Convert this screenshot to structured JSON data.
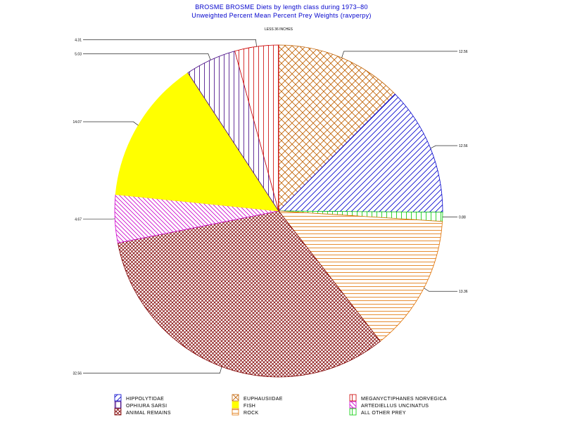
{
  "chart_data": {
    "type": "pie",
    "title": "BROSME BROSME Diets by length class during 1973–80",
    "subtitle": "Unweighted Percent Mean Percent Prey  Weights (ravperpy)",
    "top_label": "LESS 36 INCHES",
    "slices": [
      {
        "name": "EUPHAUSIIDAE",
        "value": 12.56,
        "value_label": "12.56",
        "color": "#c06000",
        "pattern": "crosshatch"
      },
      {
        "name": "HIPPOLYTIDAE",
        "value": 12.56,
        "value_label": "12.56",
        "color": "#0000cc",
        "pattern": "diag"
      },
      {
        "name": "ALL OTHER PREY",
        "value": 0.88,
        "value_label": "0.88",
        "color": "#00cc00",
        "pattern": "vertical"
      },
      {
        "name": "ROCK",
        "value": 13.36,
        "value_label": "13.36",
        "color": "#e07000",
        "pattern": "horizontal"
      },
      {
        "name": "ANIMAL REMAINS",
        "value": 32.56,
        "value_label": "32.56",
        "color": "#800000",
        "pattern": "crosshatch-fine"
      },
      {
        "name": "ARTEDIELLUS UNCINATUS",
        "value": 4.67,
        "value_label": "4.67",
        "color": "#cc00cc",
        "pattern": "diag-rev"
      },
      {
        "name": "FISH",
        "value": 14.07,
        "value_label": "14.07",
        "color": "#ffff00",
        "pattern": "solid"
      },
      {
        "name": "OPHIURA SARSI",
        "value": 5.03,
        "value_label": "5.03",
        "color": "#400080",
        "pattern": "vertical"
      },
      {
        "name": "MEGANYCTIPHANES NORVEGICA",
        "value": 4.31,
        "value_label": "4.31",
        "color": "#cc0000",
        "pattern": "vertical"
      }
    ],
    "legend": [
      {
        "name": "HIPPOLYTIDAE",
        "slice": 1
      },
      {
        "name": "EUPHAUSIIDAE",
        "slice": 0
      },
      {
        "name": "MEGANYCTIPHANES NORVEGICA",
        "slice": 8
      },
      {
        "name": "OPHIURA SARSI",
        "slice": 7
      },
      {
        "name": "FISH",
        "slice": 6
      },
      {
        "name": "ARTEDIELLUS UNCINATUS",
        "slice": 5
      },
      {
        "name": "ANIMAL REMAINS",
        "slice": 4
      },
      {
        "name": "ROCK",
        "slice": 3
      },
      {
        "name": "ALL OTHER PREY",
        "slice": 2
      }
    ],
    "legend_placement": "bottom"
  }
}
